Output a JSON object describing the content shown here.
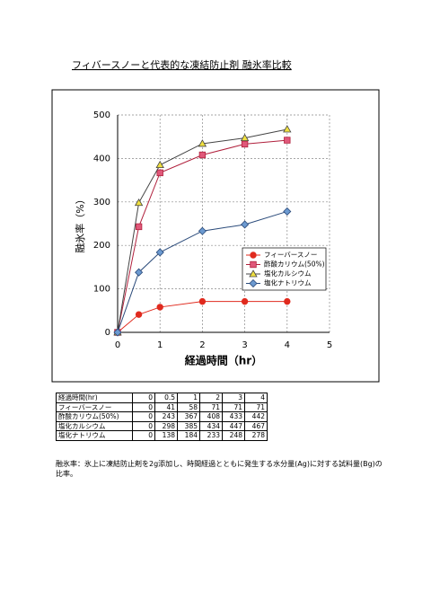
{
  "chart_data": {
    "type": "line",
    "title": "フィバースノーと代表的な凍結防止剤 融氷率比較",
    "x_label": "経過時間（hr）",
    "y_label": "融氷率（%）",
    "x": [
      0,
      0.5,
      1,
      2,
      3,
      4
    ],
    "series": [
      {
        "name": "フィーバースノー",
        "color": "#e02a1e",
        "fill": "#e02a1e",
        "marker": "circle",
        "values": [
          0,
          41,
          58,
          71,
          71,
          71
        ]
      },
      {
        "name": "酢酸カリウム(50%)",
        "color": "#b0203c",
        "fill": "#e0587a",
        "marker": "square",
        "values": [
          0,
          243,
          367,
          408,
          433,
          442
        ]
      },
      {
        "name": "塩化カルシウム",
        "color": "#444444",
        "fill": "#f0e040",
        "marker": "triangle",
        "values": [
          0,
          298,
          385,
          434,
          447,
          467
        ]
      },
      {
        "name": "塩化ナトリウム",
        "color": "#2a4a7a",
        "fill": "#6c9ad0",
        "marker": "diamond",
        "values": [
          0,
          138,
          184,
          233,
          248,
          278
        ]
      }
    ],
    "xlim": [
      0,
      5
    ],
    "xticks": [
      0,
      1,
      2,
      3,
      4,
      5
    ],
    "ylim": [
      0,
      500
    ],
    "yticks": [
      0,
      100,
      200,
      300,
      400,
      500
    ],
    "grid": true,
    "legend": "lower-right"
  },
  "table": {
    "header": "経過時間(hr)"
  },
  "note": "融氷率：氷上に凍結防止剤を2g添加し、時間経過とともに発生する水分量(Ag)に対する試料量(Bg)の比率。"
}
